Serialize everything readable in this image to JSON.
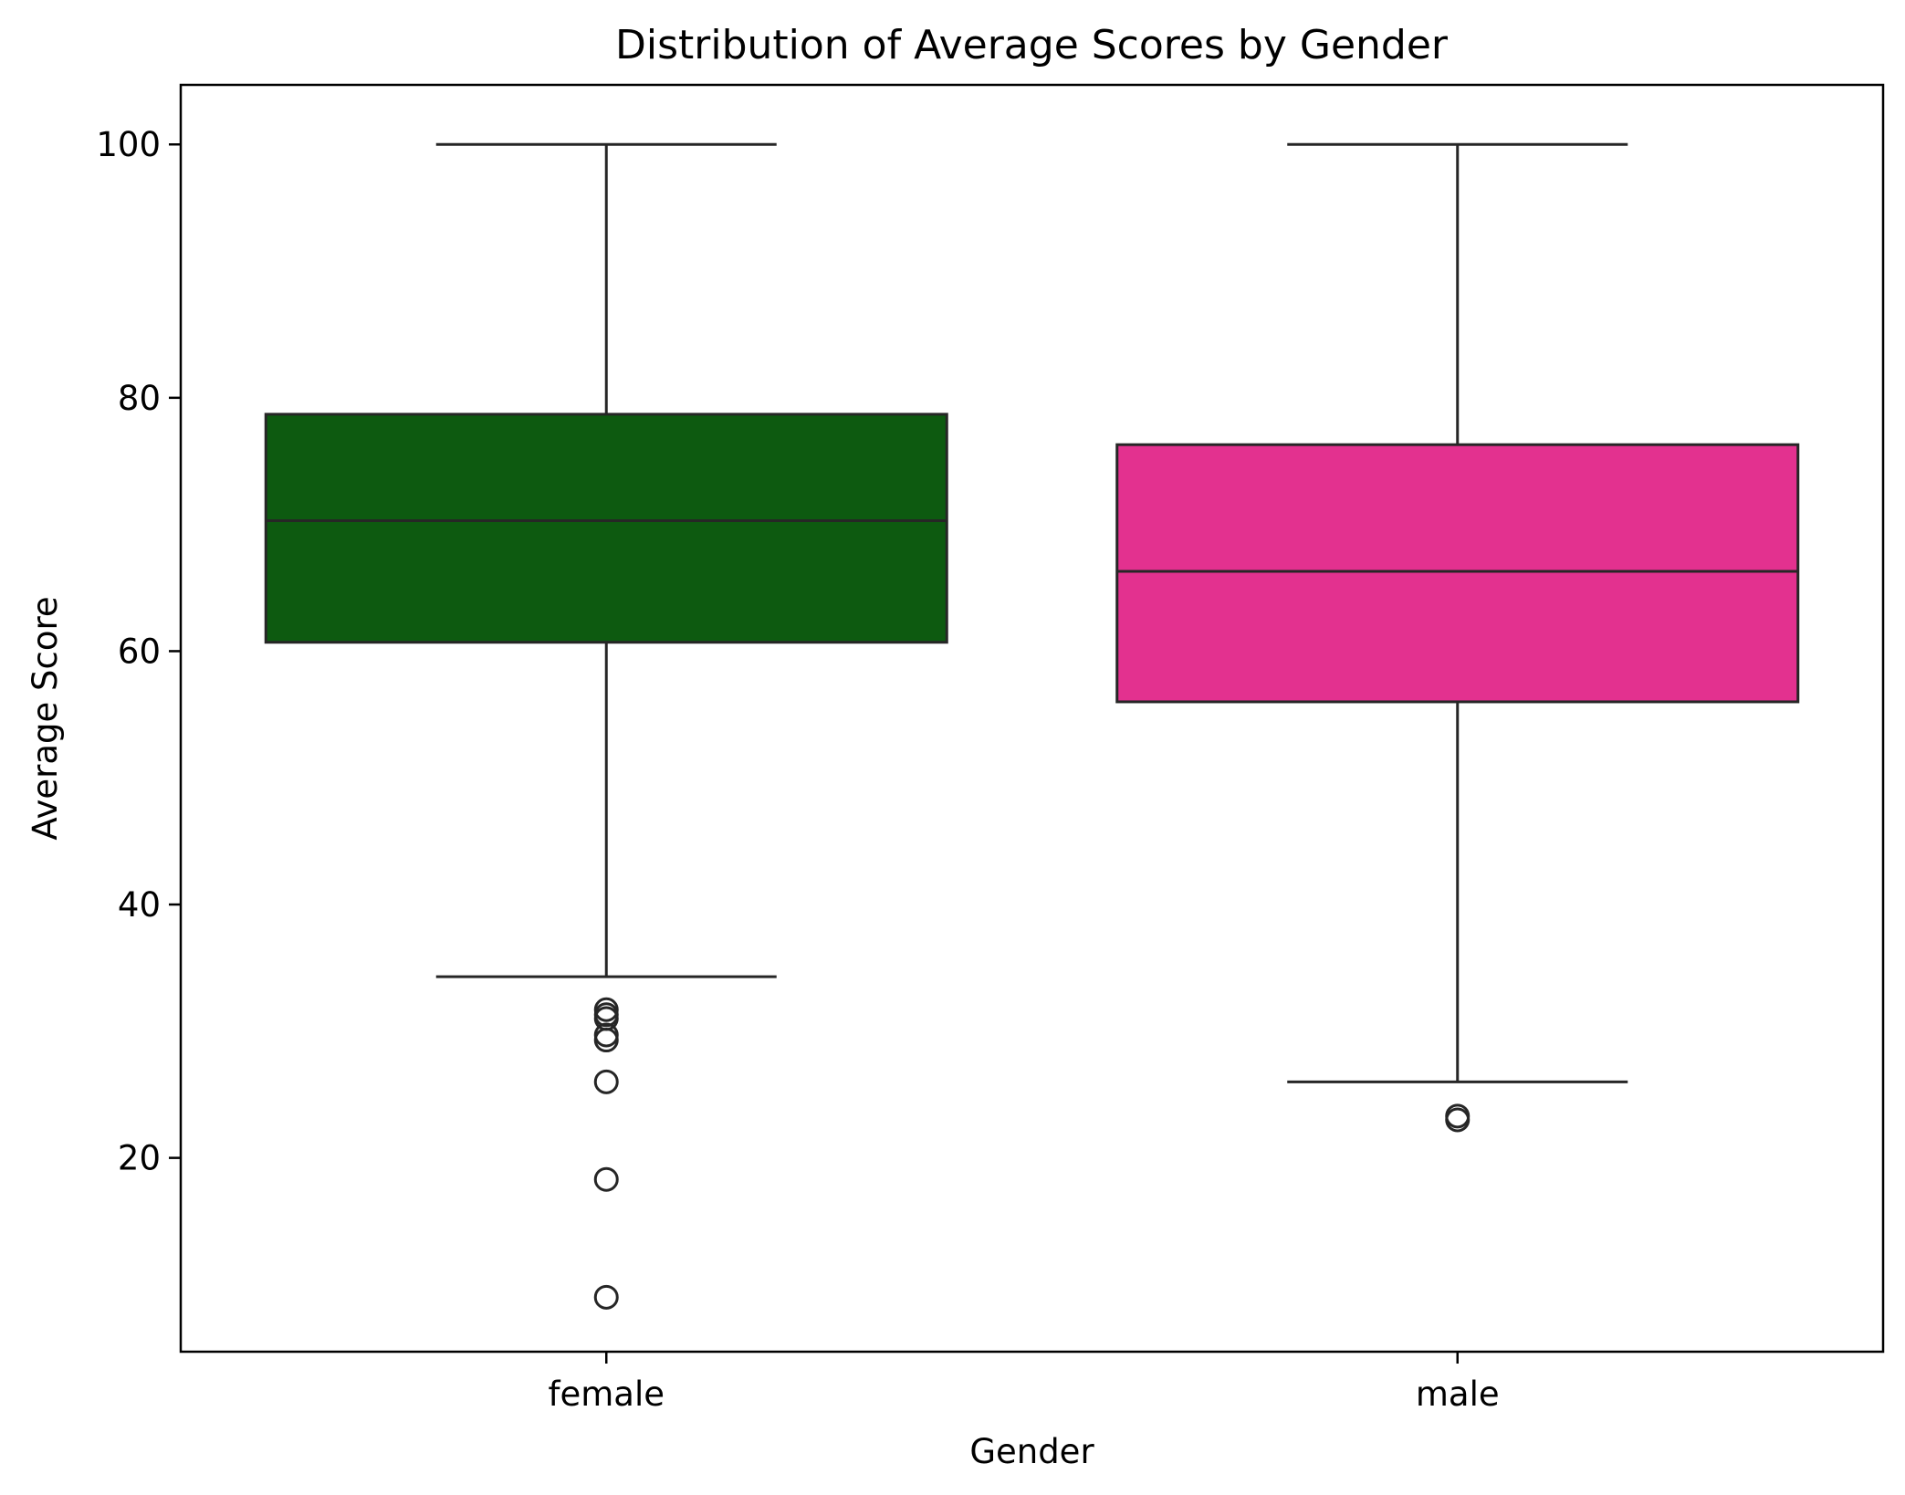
{
  "chart_data": {
    "type": "box",
    "title": "Distribution of Average Scores by Gender",
    "xlabel": "Gender",
    "ylabel": "Average Score",
    "ylim": [
      4.7,
      104.7
    ],
    "yticks": [
      20,
      40,
      60,
      80,
      100
    ],
    "categories": [
      "female",
      "male"
    ],
    "grid": false,
    "legend": "none",
    "boxes": [
      {
        "category": "female",
        "color": "#0d5a10",
        "whisker_low": 34.3,
        "q1": 60.7,
        "median": 70.3,
        "q3": 78.7,
        "whisker_high": 100,
        "outliers": [
          31.7,
          31.3,
          31.0,
          29.7,
          29.3,
          26.0,
          18.3,
          9.0
        ]
      },
      {
        "category": "male",
        "color": "#e3318f",
        "whisker_low": 26.0,
        "q1": 56.0,
        "median": 66.3,
        "q3": 76.3,
        "whisker_high": 100,
        "outliers": [
          23.3,
          23.0
        ]
      }
    ]
  }
}
